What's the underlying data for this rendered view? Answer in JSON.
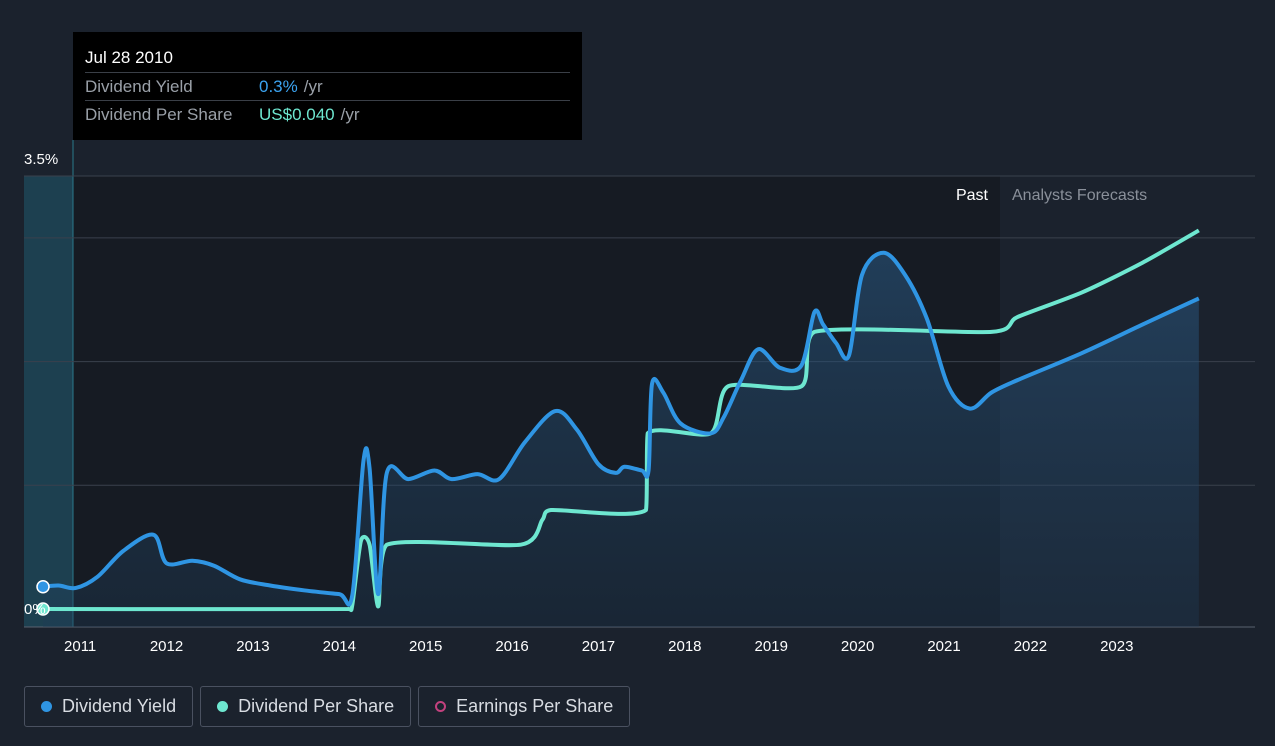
{
  "tooltip": {
    "date": "Jul 28 2010",
    "rows": [
      {
        "label": "Dividend Yield",
        "value": "0.3%",
        "unit": "/yr"
      },
      {
        "label": "Dividend Per Share",
        "value": "US$0.040",
        "unit": "/yr"
      }
    ]
  },
  "legend": {
    "items": [
      {
        "label": "Dividend Yield",
        "color": "#2f95e3"
      },
      {
        "label": "Dividend Per Share",
        "color": "#6ee7d0"
      },
      {
        "label": "Earnings Per Share",
        "color": "#c2417e"
      }
    ]
  },
  "chart_data": {
    "type": "line",
    "y_top_label": "3.5%",
    "y_bottom_label": "0%",
    "ylim": [
      0,
      3.5
    ],
    "xlim": [
      2010.35,
      2024.6
    ],
    "x_ticks": [
      "2011",
      "2012",
      "2013",
      "2014",
      "2015",
      "2016",
      "2017",
      "2018",
      "2019",
      "2020",
      "2021",
      "2022",
      "2023"
    ],
    "region_labels": {
      "past": "Past",
      "forecast": "Analysts Forecasts"
    },
    "forecast_start": 2021.55,
    "series": [
      {
        "name": "Dividend Yield",
        "color": "#2f95e3",
        "points": [
          [
            2010.57,
            0.18
          ],
          [
            2010.75,
            0.19
          ],
          [
            2010.95,
            0.17
          ],
          [
            2011.2,
            0.26
          ],
          [
            2011.5,
            0.47
          ],
          [
            2011.85,
            0.6
          ],
          [
            2012.0,
            0.37
          ],
          [
            2012.3,
            0.39
          ],
          [
            2012.55,
            0.35
          ],
          [
            2012.85,
            0.24
          ],
          [
            2013.2,
            0.19
          ],
          [
            2013.6,
            0.15
          ],
          [
            2014.0,
            0.12
          ],
          [
            2014.15,
            0.11
          ],
          [
            2014.28,
            1.2
          ],
          [
            2014.35,
            1.14
          ],
          [
            2014.45,
            0.12
          ],
          [
            2014.55,
            1.1
          ],
          [
            2014.8,
            1.05
          ],
          [
            2015.1,
            1.12
          ],
          [
            2015.3,
            1.05
          ],
          [
            2015.6,
            1.09
          ],
          [
            2015.85,
            1.05
          ],
          [
            2016.15,
            1.35
          ],
          [
            2016.5,
            1.6
          ],
          [
            2016.75,
            1.45
          ],
          [
            2017.0,
            1.17
          ],
          [
            2017.2,
            1.1
          ],
          [
            2017.3,
            1.15
          ],
          [
            2017.5,
            1.12
          ],
          [
            2017.58,
            1.12
          ],
          [
            2017.62,
            1.82
          ],
          [
            2017.75,
            1.75
          ],
          [
            2017.95,
            1.5
          ],
          [
            2018.3,
            1.42
          ],
          [
            2018.45,
            1.55
          ],
          [
            2018.65,
            1.85
          ],
          [
            2018.85,
            2.1
          ],
          [
            2019.1,
            1.95
          ],
          [
            2019.35,
            1.97
          ],
          [
            2019.5,
            2.4
          ],
          [
            2019.6,
            2.3
          ],
          [
            2019.75,
            2.15
          ],
          [
            2019.9,
            2.05
          ],
          [
            2020.05,
            2.7
          ],
          [
            2020.3,
            2.88
          ],
          [
            2020.55,
            2.7
          ],
          [
            2020.8,
            2.35
          ],
          [
            2021.05,
            1.8
          ],
          [
            2021.3,
            1.62
          ],
          [
            2021.55,
            1.75
          ],
          [
            2021.85,
            1.85
          ],
          [
            2022.6,
            2.07
          ],
          [
            2023.3,
            2.3
          ],
          [
            2023.95,
            2.51
          ]
        ]
      },
      {
        "name": "Dividend Per Share",
        "color": "#6ee7d0",
        "points": [
          [
            2010.57,
            0.0
          ],
          [
            2014.1,
            0.0
          ],
          [
            2014.15,
            0.03
          ],
          [
            2014.25,
            0.55
          ],
          [
            2014.35,
            0.52
          ],
          [
            2014.45,
            0.02
          ],
          [
            2014.55,
            0.52
          ],
          [
            2016.1,
            0.52
          ],
          [
            2016.35,
            0.72
          ],
          [
            2016.45,
            0.8
          ],
          [
            2017.55,
            0.8
          ],
          [
            2017.57,
            1.42
          ],
          [
            2018.3,
            1.42
          ],
          [
            2018.5,
            1.8
          ],
          [
            2019.35,
            1.8
          ],
          [
            2019.5,
            2.24
          ],
          [
            2021.55,
            2.24
          ],
          [
            2021.85,
            2.36
          ],
          [
            2022.6,
            2.56
          ],
          [
            2023.3,
            2.8
          ],
          [
            2023.95,
            3.06
          ]
        ]
      }
    ]
  }
}
